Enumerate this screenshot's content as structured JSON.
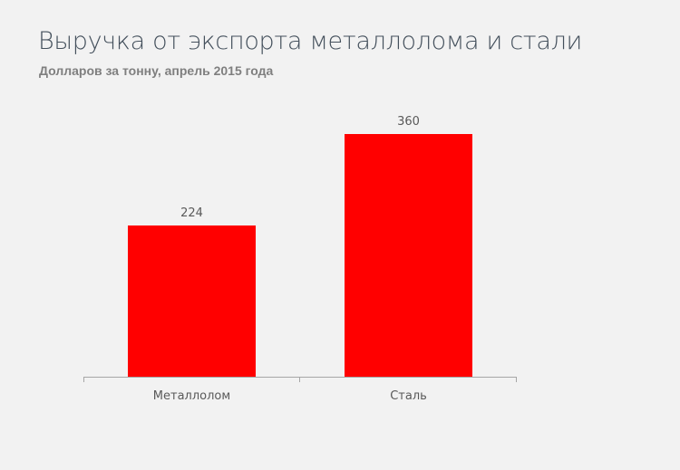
{
  "header": {
    "title": "Выручка от экспорта металлолома и стали",
    "subtitle": "Долларов за тонну, апрель 2015 года"
  },
  "colors": {
    "bar": "#ff0000",
    "background": "#f2f2f2"
  },
  "chart_data": {
    "type": "bar",
    "title": "Выручка от экспорта металлолома и стали",
    "subtitle": "Долларов за тонну, апрель 2015 года",
    "categories": [
      "Металлолом",
      "Сталь"
    ],
    "values": [
      224,
      360
    ],
    "data_labels": [
      "224",
      "360"
    ],
    "xlabel": "",
    "ylabel": "",
    "ylim": [
      0,
      400
    ],
    "grid": false,
    "legend": null,
    "y_axis_visible": false
  }
}
